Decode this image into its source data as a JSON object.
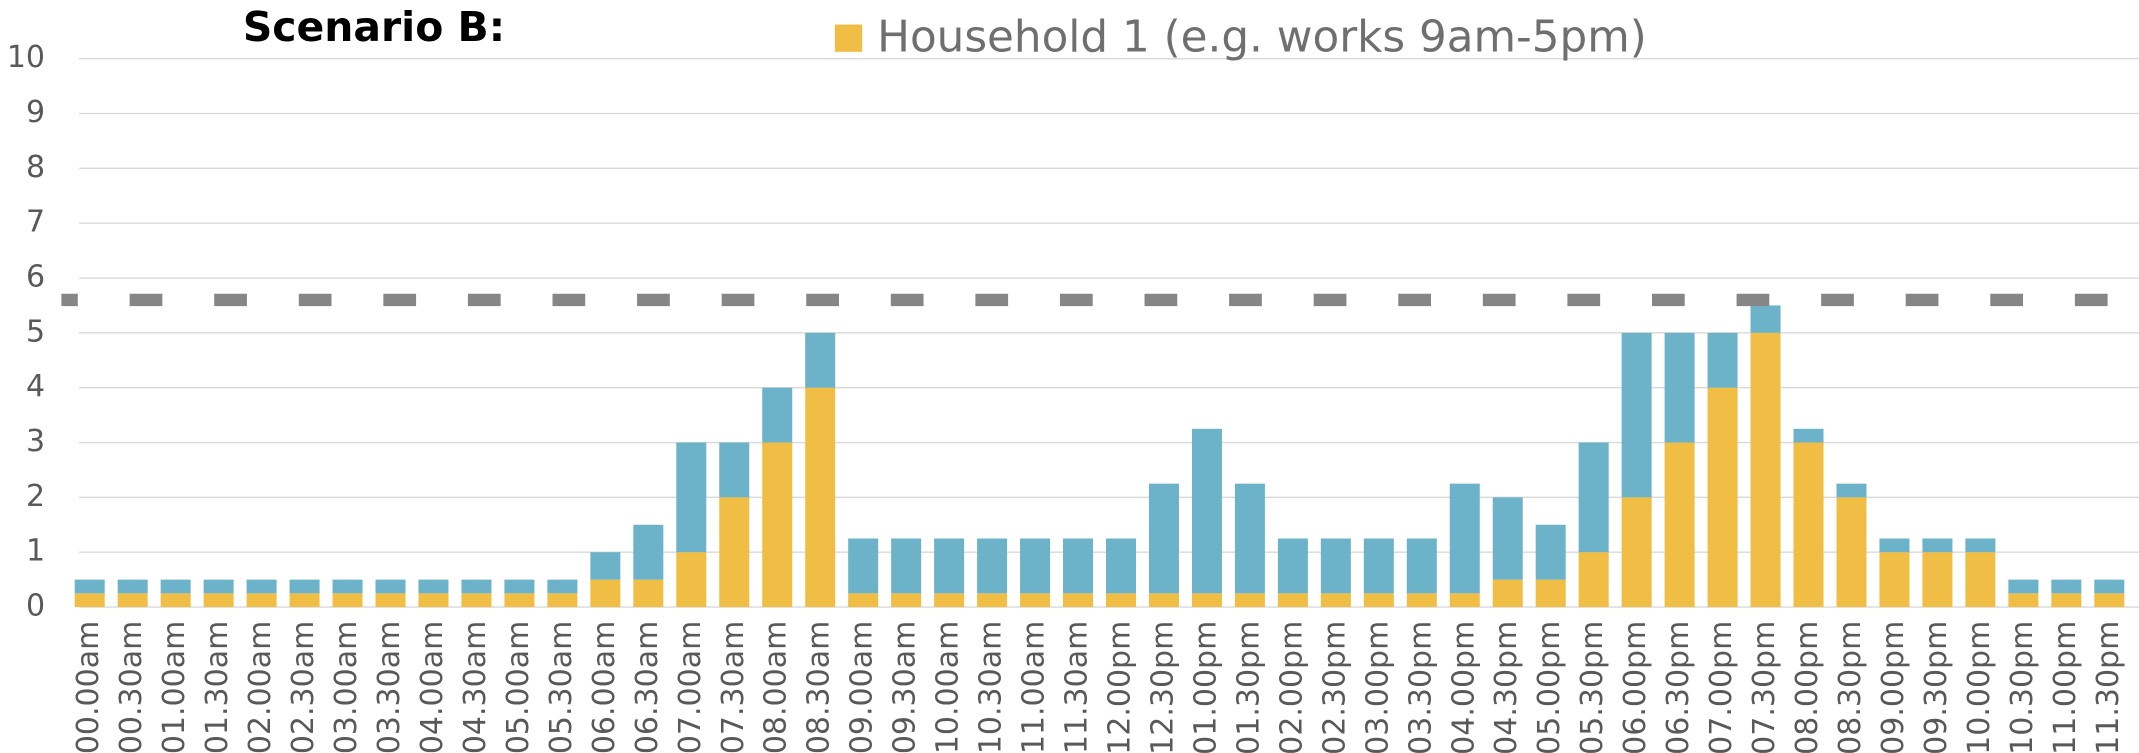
{
  "chart_data": {
    "type": "bar",
    "title": "Scenario B:",
    "categories": [
      "00.00am",
      "00.30am",
      "01.00am",
      "01.30am",
      "02.00am",
      "02.30am",
      "03.00am",
      "03.30am",
      "04.00am",
      "04.30am",
      "05.00am",
      "05.30am",
      "06.00am",
      "06.30am",
      "07.00am",
      "07.30am",
      "08.00am",
      "08.30am",
      "09.00am",
      "09.30am",
      "10.00am",
      "10.30am",
      "11.00am",
      "11.30am",
      "12.00pm",
      "12.30pm",
      "01.00pm",
      "01.30pm",
      "02.00pm",
      "02.30pm",
      "03.00pm",
      "03.30pm",
      "04.00pm",
      "04.30pm",
      "05.00pm",
      "05.30pm",
      "06.00pm",
      "06.30pm",
      "07.00pm",
      "07.30pm",
      "08.00pm",
      "08.30pm",
      "09.00pm",
      "09.30pm",
      "10.00pm",
      "10.30pm",
      "11.00pm",
      "11.30pm"
    ],
    "series": [
      {
        "name": "Household 1 (e.g. works 9am-5pm)",
        "color": "#f0bd45",
        "values": [
          0.25,
          0.25,
          0.25,
          0.25,
          0.25,
          0.25,
          0.25,
          0.25,
          0.25,
          0.25,
          0.25,
          0.25,
          0.5,
          0.5,
          1,
          2,
          3,
          4,
          0.25,
          0.25,
          0.25,
          0.25,
          0.25,
          0.25,
          0.25,
          0.25,
          0.25,
          0.25,
          0.25,
          0.25,
          0.25,
          0.25,
          0.25,
          0.5,
          0.5,
          1,
          2,
          3,
          4,
          5,
          3,
          2,
          1,
          1,
          1,
          0.25,
          0.25,
          0.25
        ]
      },
      {
        "color": "#6cb3c9",
        "values": [
          0.25,
          0.25,
          0.25,
          0.25,
          0.25,
          0.25,
          0.25,
          0.25,
          0.25,
          0.25,
          0.25,
          0.25,
          0.5,
          1,
          2,
          1,
          1,
          1,
          1,
          1,
          1,
          1,
          1,
          1,
          1,
          2,
          3,
          2,
          1,
          1,
          1,
          1,
          2,
          1.5,
          1,
          2,
          3,
          2,
          1,
          0.5,
          0.25,
          0.25,
          0.25,
          0.25,
          0.25,
          0.25,
          0.25,
          0.25
        ]
      }
    ],
    "stacked": true,
    "reference_line": {
      "value": 5.6,
      "color": "#868686",
      "dashed": true
    },
    "ylim": [
      0,
      10
    ],
    "yticks": [
      0,
      1,
      2,
      3,
      4,
      5,
      6,
      7,
      8,
      9,
      10
    ],
    "grid": true
  }
}
